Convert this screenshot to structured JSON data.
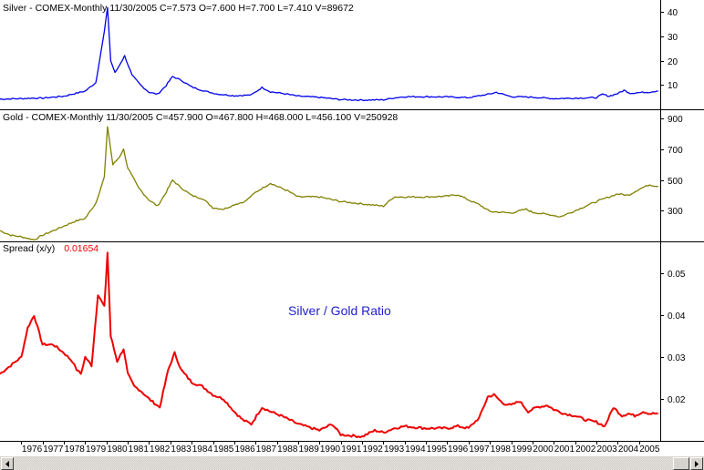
{
  "colors": {
    "silver": "#0000ee",
    "gold": "#808000",
    "spread": "#ee0000",
    "annotation": "#2222cc"
  },
  "panels": {
    "silver": {
      "header": "Silver - COMEX-Monthly   11/30/2005  C=7.573  O=7.600  H=7.700  L=7.410  V=89672",
      "ticks": [
        "10",
        "20",
        "30",
        "40"
      ]
    },
    "gold": {
      "header": "Gold - COMEX-Monthly   11/30/2005  C=457.900  O=467.800  H=468.000  L=456.100  V=250928",
      "ticks": [
        "300",
        "500",
        "700",
        "900"
      ]
    },
    "spread": {
      "header_label": "Spread (x/y)",
      "header_value": "0.01654",
      "annotation": "Silver / Gold Ratio",
      "ticks": [
        "0.02",
        "0.03",
        "0.04",
        "0.05"
      ]
    }
  },
  "x_labels": [
    "1976",
    "1977",
    "1978",
    "1979",
    "1980",
    "1981",
    "1982",
    "1983",
    "1984",
    "1985",
    "1986",
    "1987",
    "1988",
    "1989",
    "1990",
    "1991",
    "1992",
    "1993",
    "1994",
    "1995",
    "1996",
    "1997",
    "1998",
    "1999",
    "2000",
    "2001",
    "2002",
    "2003",
    "2004",
    "2005"
  ],
  "chart_data": [
    {
      "type": "line",
      "title": "Silver - COMEX-Monthly",
      "ylim": [
        0,
        45
      ],
      "series": [
        {
          "name": "Silver",
          "x": [
            1975.0,
            1976.0,
            1976.5,
            1977.0,
            1978.0,
            1979.0,
            1979.5,
            1979.9,
            1980.05,
            1980.2,
            1980.4,
            1980.6,
            1980.85,
            1981.2,
            1981.6,
            1982.0,
            1982.4,
            1982.8,
            1983.1,
            1983.5,
            1984.0,
            1984.6,
            1985.2,
            1986.0,
            1986.8,
            1987.3,
            1987.7,
            1988.3,
            1989.0,
            1990.0,
            1991.0,
            1992.0,
            1993.0,
            1993.5,
            1994.0,
            1995.0,
            1996.0,
            1997.0,
            1998.0,
            1998.3,
            1999.0,
            2000.0,
            2001.0,
            2002.0,
            2003.0,
            2003.3,
            2003.6,
            2004.0,
            2004.3,
            2004.6,
            2005.0,
            2005.5,
            2005.9
          ],
          "values": [
            4.2,
            4.4,
            4.6,
            4.6,
            5.4,
            7.5,
            11.0,
            32.0,
            42.0,
            20.0,
            15.0,
            18.0,
            22.0,
            14.0,
            10.0,
            7.0,
            6.2,
            9.8,
            13.5,
            12.0,
            9.2,
            7.5,
            6.3,
            5.6,
            5.9,
            9.0,
            7.2,
            6.5,
            5.4,
            4.9,
            4.0,
            3.8,
            3.9,
            4.7,
            5.2,
            5.2,
            5.1,
            4.8,
            6.3,
            7.0,
            5.2,
            5.0,
            4.4,
            4.6,
            4.8,
            6.2,
            5.4,
            6.5,
            7.8,
            6.6,
            6.9,
            7.1,
            7.573
          ]
        }
      ]
    },
    {
      "type": "line",
      "title": "Gold - COMEX-Monthly",
      "ylim": [
        100,
        950
      ],
      "series": [
        {
          "name": "Gold",
          "x": [
            1975.0,
            1975.5,
            1976.0,
            1976.6,
            1977.0,
            1978.0,
            1978.5,
            1979.0,
            1979.5,
            1979.9,
            1980.05,
            1980.3,
            1980.6,
            1980.8,
            1981.0,
            1981.5,
            1982.0,
            1982.4,
            1982.8,
            1983.1,
            1983.5,
            1984.0,
            1984.5,
            1985.0,
            1985.5,
            1986.0,
            1986.5,
            1987.0,
            1987.7,
            1988.0,
            1988.5,
            1989.0,
            1990.0,
            1991.0,
            1992.0,
            1993.0,
            1993.5,
            1994.0,
            1995.0,
            1996.0,
            1996.5,
            1997.0,
            1997.5,
            1998.0,
            1999.0,
            1999.7,
            2000.0,
            2001.0,
            2001.3,
            2002.0,
            2003.0,
            2004.0,
            2004.5,
            2005.0,
            2005.5,
            2005.9
          ],
          "values": [
            170,
            140,
            130,
            110,
            140,
            200,
            230,
            250,
            350,
            520,
            850,
            600,
            650,
            700,
            580,
            450,
            370,
            330,
            420,
            500,
            450,
            400,
            380,
            320,
            310,
            340,
            360,
            420,
            480,
            460,
            430,
            390,
            390,
            360,
            345,
            330,
            390,
            390,
            390,
            395,
            405,
            370,
            340,
            295,
            285,
            310,
            290,
            270,
            260,
            300,
            360,
            410,
            400,
            440,
            470,
            457.9
          ]
        }
      ]
    },
    {
      "type": "line",
      "title": "Spread (x/y)",
      "ylim": [
        0.01,
        0.057
      ],
      "series": [
        {
          "name": "Spread",
          "x": [
            1975.0,
            1975.5,
            1976.0,
            1976.3,
            1976.6,
            1977.0,
            1977.5,
            1978.0,
            1978.4,
            1978.6,
            1978.8,
            1979.0,
            1979.3,
            1979.6,
            1979.9,
            1980.05,
            1980.2,
            1980.5,
            1980.8,
            1981.0,
            1981.3,
            1981.6,
            1982.0,
            1982.5,
            1982.9,
            1983.2,
            1983.5,
            1984.0,
            1984.5,
            1985.0,
            1985.5,
            1986.0,
            1986.4,
            1986.8,
            1987.3,
            1987.7,
            1988.2,
            1989.0,
            1990.0,
            1990.6,
            1991.0,
            1992.0,
            1992.6,
            1993.0,
            1993.5,
            1994.0,
            1995.0,
            1996.0,
            1996.5,
            1997.0,
            1997.5,
            1997.9,
            1998.2,
            1998.6,
            1999.0,
            1999.4,
            1999.8,
            2000.2,
            2000.7,
            2001.0,
            2001.5,
            2002.0,
            2002.5,
            2003.0,
            2003.4,
            2003.8,
            2004.2,
            2004.5,
            2004.8,
            2005.2,
            2005.5,
            2005.9
          ],
          "values": [
            0.026,
            0.028,
            0.03,
            0.037,
            0.04,
            0.033,
            0.033,
            0.031,
            0.029,
            0.027,
            0.026,
            0.03,
            0.028,
            0.045,
            0.042,
            0.055,
            0.035,
            0.029,
            0.032,
            0.026,
            0.023,
            0.022,
            0.02,
            0.018,
            0.027,
            0.031,
            0.027,
            0.024,
            0.023,
            0.021,
            0.02,
            0.017,
            0.015,
            0.014,
            0.018,
            0.017,
            0.016,
            0.014,
            0.0125,
            0.014,
            0.0115,
            0.011,
            0.0125,
            0.012,
            0.013,
            0.0135,
            0.013,
            0.013,
            0.0135,
            0.013,
            0.0155,
            0.0205,
            0.021,
            0.019,
            0.0185,
            0.0195,
            0.017,
            0.018,
            0.0185,
            0.0175,
            0.0165,
            0.016,
            0.015,
            0.0145,
            0.0135,
            0.018,
            0.016,
            0.0165,
            0.016,
            0.017,
            0.0165,
            0.01654
          ]
        }
      ]
    }
  ]
}
